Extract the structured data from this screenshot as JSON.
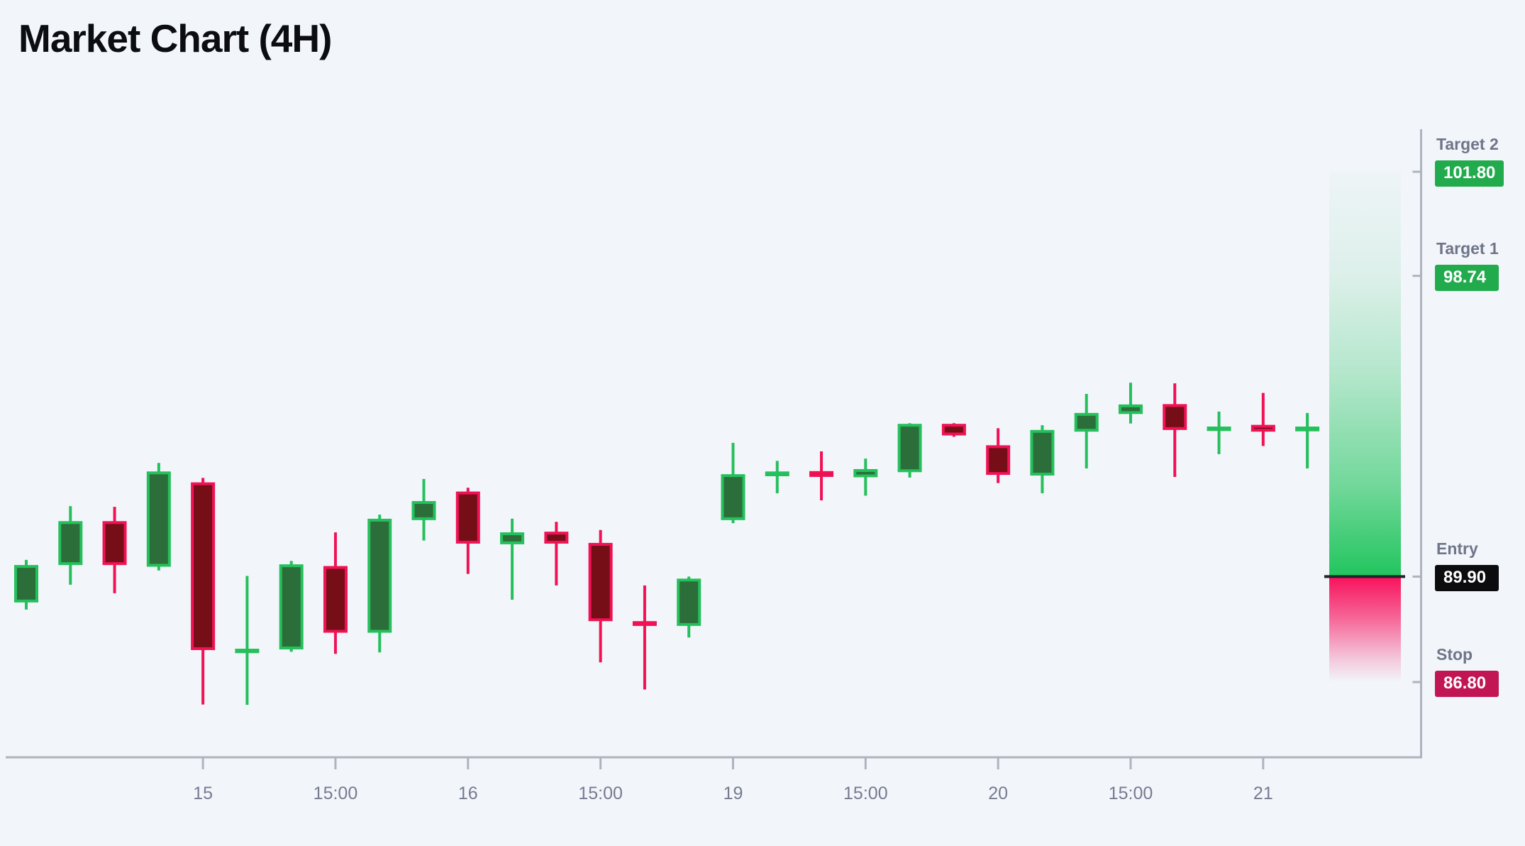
{
  "title": "Market Chart (4H)",
  "colors": {
    "background": "#f2f5fa",
    "title_text": "#0b0d12",
    "axis_line": "#aeb4bf",
    "tick_label_text": "#767c90",
    "level_label_text": "#6f7589",
    "badge_text": "#ffffff",
    "up_candle_border": "#25c05c",
    "up_candle_fill": "#2b6e3a",
    "down_candle_border": "#f01255",
    "down_candle_fill": "#750e16",
    "target_badge": "#22ab4d",
    "entry_badge": "#0c0c0e",
    "stop_badge": "#c11653",
    "entry_line": "#20262b",
    "green_zone": "#22c55e",
    "red_zone": "#f8115c"
  },
  "chart_data": {
    "type": "candlestick",
    "title": "Market Chart (4H)",
    "timeframe": "4H",
    "grid": "off",
    "price_axis_side": "right",
    "visible_price_range": [
      85.1,
      103.6
    ],
    "x_tick_labels": [
      {
        "label": "15",
        "candle_index": 4
      },
      {
        "label": "15:00",
        "candle_index": 7
      },
      {
        "label": "16",
        "candle_index": 10
      },
      {
        "label": "15:00",
        "candle_index": 13
      },
      {
        "label": "19",
        "candle_index": 16
      },
      {
        "label": "15:00",
        "candle_index": 19
      },
      {
        "label": "20",
        "candle_index": 22
      },
      {
        "label": "15:00",
        "candle_index": 25
      },
      {
        "label": "21",
        "candle_index": 28
      }
    ],
    "candles": [
      {
        "open": 89.14,
        "high": 90.39,
        "low": 88.93,
        "close": 90.24
      },
      {
        "open": 90.24,
        "high": 91.97,
        "low": 89.66,
        "close": 91.53
      },
      {
        "open": 91.53,
        "high": 91.95,
        "low": 89.41,
        "close": 90.24
      },
      {
        "open": 90.19,
        "high": 93.24,
        "low": 90.08,
        "close": 92.99
      },
      {
        "open": 92.67,
        "high": 92.8,
        "low": 86.14,
        "close": 87.74
      },
      {
        "open": 87.65,
        "high": 89.92,
        "low": 86.13,
        "close": 87.78
      },
      {
        "open": 87.76,
        "high": 90.36,
        "low": 87.69,
        "close": 90.26
      },
      {
        "open": 90.21,
        "high": 91.2,
        "low": 87.63,
        "close": 88.25
      },
      {
        "open": 88.25,
        "high": 91.72,
        "low": 87.67,
        "close": 91.6
      },
      {
        "open": 91.56,
        "high": 92.77,
        "low": 90.96,
        "close": 92.12
      },
      {
        "open": 92.4,
        "high": 92.51,
        "low": 89.98,
        "close": 90.87
      },
      {
        "open": 90.85,
        "high": 91.6,
        "low": 89.22,
        "close": 91.2
      },
      {
        "open": 91.22,
        "high": 91.51,
        "low": 89.64,
        "close": 90.87
      },
      {
        "open": 90.89,
        "high": 91.27,
        "low": 87.38,
        "close": 88.59
      },
      {
        "open": 88.59,
        "high": 89.64,
        "low": 86.58,
        "close": 88.45
      },
      {
        "open": 88.45,
        "high": 89.9,
        "low": 88.11,
        "close": 89.84
      },
      {
        "open": 91.56,
        "high": 93.83,
        "low": 91.47,
        "close": 92.91
      },
      {
        "open": 92.85,
        "high": 93.3,
        "low": 92.35,
        "close": 92.99
      },
      {
        "open": 93.0,
        "high": 93.58,
        "low": 92.14,
        "close": 92.83
      },
      {
        "open": 92.82,
        "high": 93.37,
        "low": 92.28,
        "close": 93.06
      },
      {
        "open": 92.97,
        "high": 94.41,
        "low": 92.81,
        "close": 94.39
      },
      {
        "open": 94.39,
        "high": 94.41,
        "low": 94.01,
        "close": 94.05
      },
      {
        "open": 93.76,
        "high": 94.26,
        "low": 92.65,
        "close": 92.89
      },
      {
        "open": 92.87,
        "high": 94.35,
        "low": 92.35,
        "close": 94.21
      },
      {
        "open": 94.16,
        "high": 95.27,
        "low": 93.08,
        "close": 94.71
      },
      {
        "open": 94.68,
        "high": 95.6,
        "low": 94.4,
        "close": 94.96
      },
      {
        "open": 94.97,
        "high": 95.58,
        "low": 92.83,
        "close": 94.21
      },
      {
        "open": 94.18,
        "high": 94.75,
        "low": 93.5,
        "close": 94.31
      },
      {
        "open": 94.36,
        "high": 95.3,
        "low": 93.74,
        "close": 94.16
      },
      {
        "open": 94.17,
        "high": 94.71,
        "low": 93.08,
        "close": 94.31
      }
    ],
    "levels": [
      {
        "name": "Target 2",
        "price": 101.8
      },
      {
        "name": "Target 1",
        "price": 98.74
      },
      {
        "name": "Entry",
        "price": 89.9
      },
      {
        "name": "Stop",
        "price": 86.8
      }
    ]
  },
  "levels": [
    {
      "name": "Target 2",
      "value": "101.80",
      "price": 101.8,
      "kind": "target"
    },
    {
      "name": "Target 1",
      "value": "98.74",
      "price": 98.74,
      "kind": "target"
    },
    {
      "name": "Entry",
      "value": "89.90",
      "price": 89.9,
      "kind": "entry"
    },
    {
      "name": "Stop",
      "value": "86.80",
      "price": 86.8,
      "kind": "stop"
    }
  ]
}
